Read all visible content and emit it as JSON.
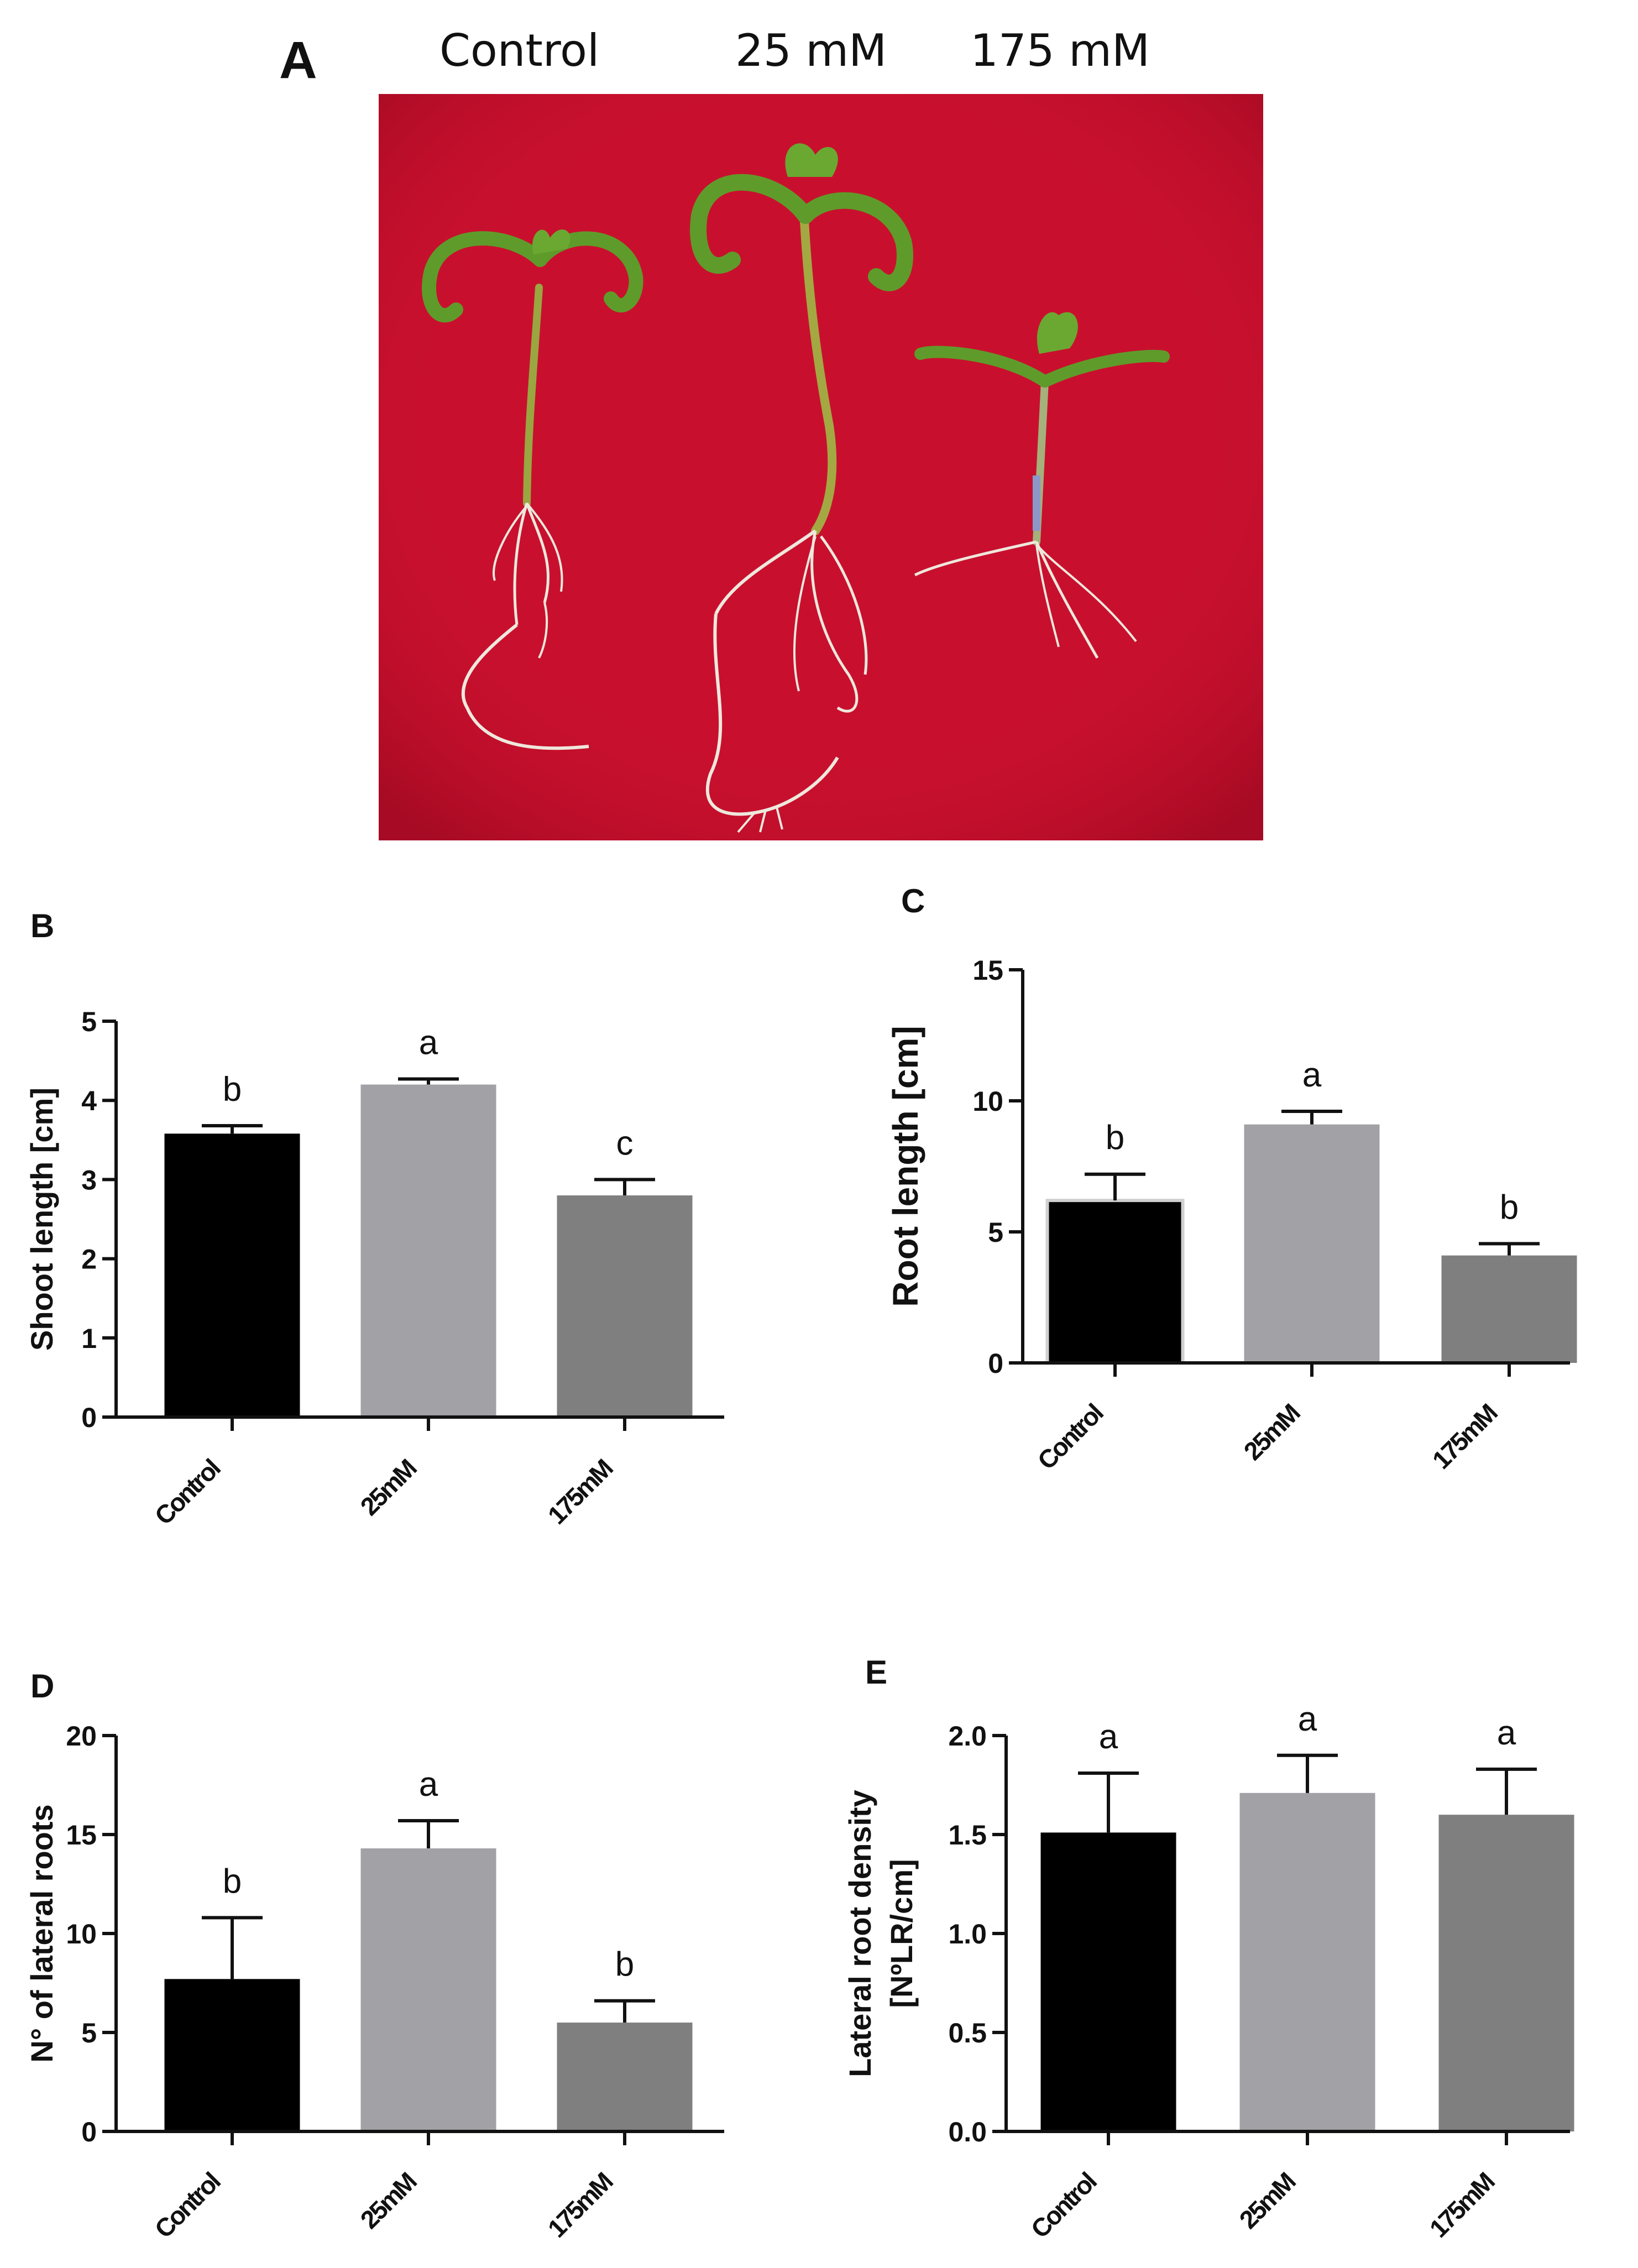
{
  "figure": {
    "panel_a": {
      "letter": "A",
      "labels": [
        "Control",
        "25 mM",
        "175 mM"
      ],
      "background_color": "#c8102e"
    }
  },
  "chart_data": [
    {
      "panel": "B",
      "type": "bar",
      "categories": [
        "Control",
        "25mM",
        "175mM"
      ],
      "values": [
        3.58,
        4.2,
        2.8
      ],
      "errors": [
        0.1,
        0.07,
        0.2
      ],
      "significance": [
        "b",
        "a",
        "c"
      ],
      "ylabel": "Shoot length [cm]",
      "ylim": [
        0,
        5
      ],
      "yticks": [
        "0",
        "1",
        "2",
        "3",
        "4",
        "5"
      ],
      "colors": [
        "#000000",
        "#a2a2a6",
        "#7f7f7f"
      ]
    },
    {
      "panel": "C",
      "type": "bar",
      "categories": [
        "Control",
        "25mM",
        "175mM"
      ],
      "values": [
        6.2,
        9.1,
        4.1
      ],
      "errors": [
        1.0,
        0.5,
        0.45
      ],
      "significance": [
        "b",
        "a",
        "b"
      ],
      "ylabel": "Root length  [cm]",
      "ylim": [
        0,
        15
      ],
      "yticks": [
        "0",
        "5",
        "10",
        "15"
      ],
      "colors": [
        "#000000",
        "#a2a2a6",
        "#7f7f7f"
      ]
    },
    {
      "panel": "D",
      "type": "bar",
      "categories": [
        "Control",
        "25mM",
        "175mM"
      ],
      "values": [
        7.7,
        14.3,
        5.5
      ],
      "errors": [
        3.1,
        1.4,
        1.1
      ],
      "significance": [
        "b",
        "a",
        "b"
      ],
      "ylabel": "N° of lateral  roots",
      "ylim": [
        0,
        20
      ],
      "yticks": [
        "0",
        "5",
        "10",
        "15",
        "20"
      ],
      "colors": [
        "#000000",
        "#a2a2a6",
        "#7f7f7f"
      ]
    },
    {
      "panel": "E",
      "type": "bar",
      "categories": [
        "Control",
        "25mM",
        "175mM"
      ],
      "values": [
        1.51,
        1.71,
        1.6
      ],
      "errors": [
        0.3,
        0.19,
        0.23
      ],
      "significance": [
        "a",
        "a",
        "a"
      ],
      "ylabel": [
        "Lateral root density",
        "[NºLR/cm]"
      ],
      "ylim": [
        0,
        2.0
      ],
      "yticks": [
        "0.0",
        "0.5",
        "1.0",
        "1.5",
        "2.0"
      ],
      "colors": [
        "#000000",
        "#a2a2a6",
        "#7f7f7f"
      ]
    }
  ]
}
